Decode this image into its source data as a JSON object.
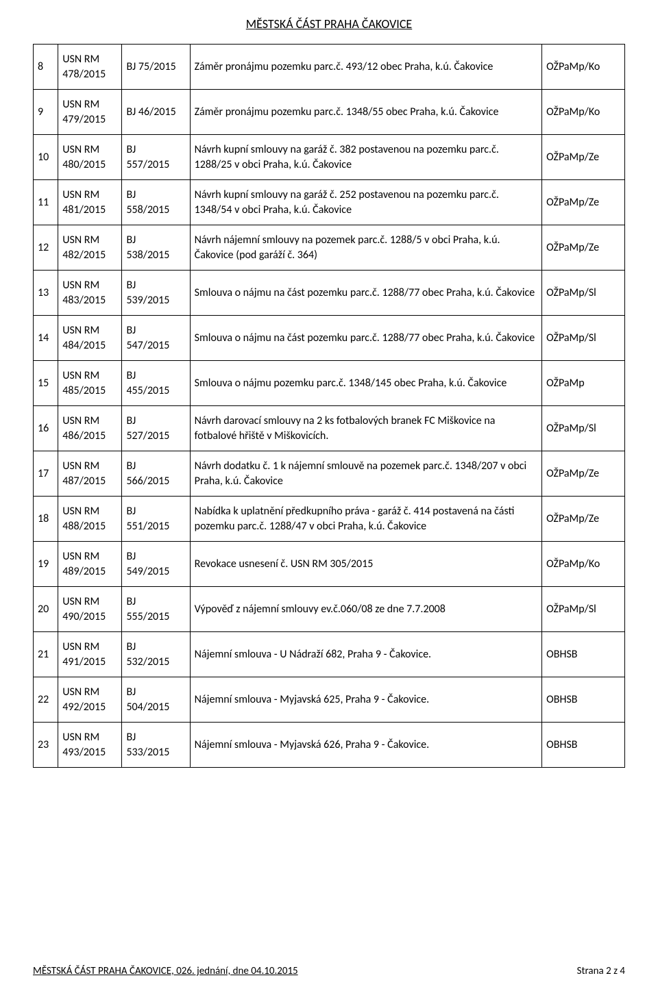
{
  "header_title": "MĚSTSKÁ ČÁST PRAHA ČAKOVICE",
  "footer_left": "MĚSTSKÁ ČÁST PRAHA ČAKOVICE, 026. jednání, dne 04.10.2015",
  "footer_right": "Strana 2 z 4",
  "usn_prefix": "USN RM",
  "bj_prefix": "BJ",
  "rows": [
    {
      "idx": "8",
      "usn": "478/2015",
      "bj": "BJ 75/2015",
      "desc": "Záměr pronájmu pozemku parc.č. 493/12 obec Praha, k.ú. Čakovice",
      "dept": "OŽPaMp/Ko"
    },
    {
      "idx": "9",
      "usn": "479/2015",
      "bj": "BJ 46/2015",
      "desc": "Záměr pronájmu pozemku parc.č. 1348/55 obec Praha, k.ú. Čakovice",
      "dept": "OŽPaMp/Ko"
    },
    {
      "idx": "10",
      "usn": "480/2015",
      "bj": "557/2015",
      "bj_split": true,
      "desc": "Návrh kupní smlouvy na garáž č. 382 postavenou na pozemku parc.č. 1288/25 v obci Praha, k.ú. Čakovice",
      "dept": "OŽPaMp/Ze"
    },
    {
      "idx": "11",
      "usn": "481/2015",
      "bj": "558/2015",
      "bj_split": true,
      "desc": "Návrh kupní smlouvy na garáž č. 252 postavenou na pozemku parc.č. 1348/54 v obci Praha, k.ú. Čakovice",
      "dept": "OŽPaMp/Ze"
    },
    {
      "idx": "12",
      "usn": "482/2015",
      "bj": "538/2015",
      "bj_split": true,
      "desc": "Návrh nájemní smlouvy na pozemek parc.č. 1288/5 v obci Praha, k.ú. Čakovice (pod garáží č. 364)",
      "dept": "OŽPaMp/Ze"
    },
    {
      "idx": "13",
      "usn": "483/2015",
      "bj": "539/2015",
      "bj_split": true,
      "desc": "Smlouva o nájmu na část pozemku parc.č. 1288/77 obec Praha, k.ú. Čakovice",
      "dept": "OŽPaMp/Sl"
    },
    {
      "idx": "14",
      "usn": "484/2015",
      "bj": "547/2015",
      "bj_split": true,
      "desc": "Smlouva o nájmu na část pozemku parc.č. 1288/77 obec Praha, k.ú. Čakovice",
      "dept": "OŽPaMp/Sl"
    },
    {
      "idx": "15",
      "usn": "485/2015",
      "bj": "455/2015",
      "bj_split": true,
      "desc": "Smlouva o nájmu pozemku parc.č. 1348/145 obec Praha, k.ú. Čakovice",
      "dept": "OŽPaMp"
    },
    {
      "idx": "16",
      "usn": "486/2015",
      "bj": "527/2015",
      "bj_split": true,
      "desc": "Návrh darovací smlouvy na 2 ks fotbalových branek FC Miškovice na fotbalové hřiště v Miškovicích.",
      "dept": "OŽPaMp/Sl"
    },
    {
      "idx": "17",
      "usn": "487/2015",
      "bj": "566/2015",
      "bj_split": true,
      "desc": "Návrh dodatku č. 1 k nájemní smlouvě na pozemek parc.č. 1348/207 v obci Praha, k.ú. Čakovice",
      "dept": "OŽPaMp/Ze"
    },
    {
      "idx": "18",
      "usn": "488/2015",
      "bj": "551/2015",
      "bj_split": true,
      "desc": "Nabídka k uplatnění předkupního práva - garáž č. 414 postavená na části pozemku parc.č. 1288/47 v obci Praha, k.ú. Čakovice",
      "dept": "OŽPaMp/Ze"
    },
    {
      "idx": "19",
      "usn": "489/2015",
      "bj": "549/2015",
      "bj_split": true,
      "desc": "Revokace usnesení č. USN RM 305/2015",
      "dept": "OŽPaMp/Ko"
    },
    {
      "idx": "20",
      "usn": "490/2015",
      "bj": "555/2015",
      "bj_split": true,
      "desc": "Výpověď z nájemní smlouvy ev.č.060/08 ze dne 7.7.2008",
      "dept": "OŽPaMp/Sl"
    },
    {
      "idx": "21",
      "usn": "491/2015",
      "bj": "532/2015",
      "bj_split": true,
      "desc": "Nájemní smlouva - U Nádraží 682, Praha 9 - Čakovice.",
      "dept": "OBHSB"
    },
    {
      "idx": "22",
      "usn": "492/2015",
      "bj": "504/2015",
      "bj_split": true,
      "desc": "Nájemní smlouva - Myjavská 625, Praha 9 - Čakovice.",
      "dept": "OBHSB"
    },
    {
      "idx": "23",
      "usn": "493/2015",
      "bj": "533/2015",
      "bj_split": true,
      "desc": "Nájemní smlouva - Myjavská 626, Praha 9 - Čakovice.",
      "dept": "OBHSB"
    }
  ]
}
